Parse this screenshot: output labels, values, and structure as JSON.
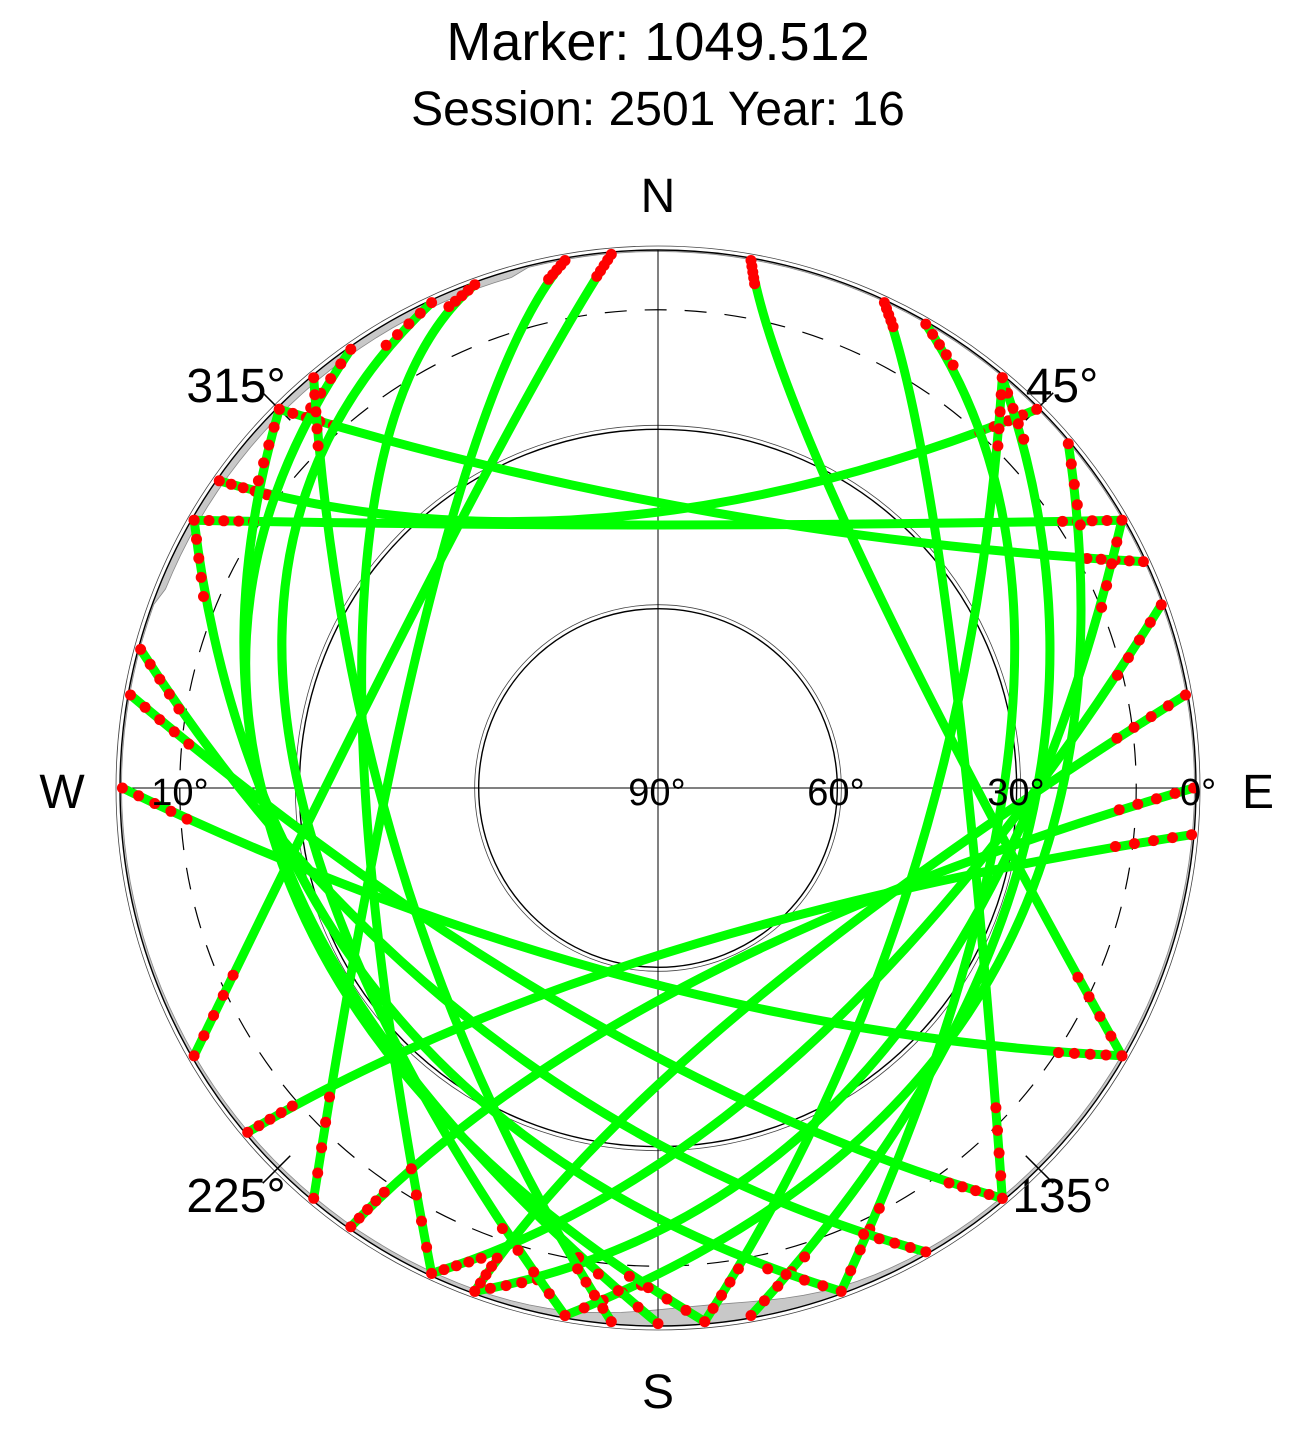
{
  "chart_data": {
    "type": "scatter",
    "projection": "polar-skyplot",
    "title": "Marker: 1049.512",
    "subtitle": "Session: 2501 Year: 16",
    "compass": {
      "north": "N",
      "south": "S",
      "east": "E",
      "west": "W"
    },
    "azimuth_labels": [
      {
        "azimuth": 45,
        "text": "45°"
      },
      {
        "azimuth": 135,
        "text": "135°"
      },
      {
        "azimuth": 225,
        "text": "225°"
      },
      {
        "azimuth": 315,
        "text": "315°"
      }
    ],
    "elevation_labels": [
      {
        "elevation": 0,
        "text": "0°"
      },
      {
        "elevation": 30,
        "text": "30°"
      },
      {
        "elevation": 60,
        "text": "60°"
      },
      {
        "elevation": 90,
        "text": "90°"
      },
      {
        "elevation": 10,
        "text": "10°",
        "side": "west"
      }
    ],
    "elevation_range": [
      0,
      90
    ],
    "elevation_rings": [
      0,
      30,
      60
    ],
    "mask_elevation": 10,
    "visible_no_data_elevation_below": 50,
    "grid": true,
    "colors": {
      "tracked": "#00ff00",
      "low_elevation": "#ff0000",
      "horizon_fill": "#c8c8c8",
      "axis": "#000000"
    },
    "series": [
      {
        "name": "",
        "color": "#00ff00"
      },
      {
        "name": "",
        "color": "#ff0000"
      }
    ],
    "tracks": [
      {
        "peak_azimuth": 0,
        "peak_elevation": 46,
        "rise": 300,
        "set": 60
      },
      {
        "peak_azimuth": 350,
        "peak_elevation": 44,
        "rise": 305,
        "set": 45
      },
      {
        "peak_azimuth": 10,
        "peak_elevation": 43,
        "rise": 315,
        "set": 65
      },
      {
        "peak_azimuth": 60,
        "peak_elevation": 34,
        "rise": 25,
        "set": 140
      },
      {
        "peak_azimuth": 80,
        "peak_elevation": 30,
        "rise": 30,
        "set": 160
      },
      {
        "peak_azimuth": 100,
        "peak_elevation": 28,
        "rise": 40,
        "set": 170
      },
      {
        "peak_azimuth": 120,
        "peak_elevation": 26,
        "rise": 50,
        "set": 190
      },
      {
        "peak_azimuth": 140,
        "peak_elevation": 32,
        "rise": 60,
        "set": 200
      },
      {
        "peak_azimuth": 150,
        "peak_elevation": 40,
        "rise": 70,
        "set": 205
      },
      {
        "peak_azimuth": 160,
        "peak_elevation": 50,
        "rise": 80,
        "set": 200
      },
      {
        "peak_azimuth": 170,
        "peak_elevation": 57,
        "rise": 90,
        "set": 215
      },
      {
        "peak_azimuth": 180,
        "peak_elevation": 62,
        "rise": 95,
        "set": 230
      },
      {
        "peak_azimuth": 190,
        "peak_elevation": 58,
        "rise": 120,
        "set": 270
      },
      {
        "peak_azimuth": 200,
        "peak_elevation": 50,
        "rise": 140,
        "set": 280
      },
      {
        "peak_azimuth": 215,
        "peak_elevation": 40,
        "rise": 150,
        "set": 285
      },
      {
        "peak_azimuth": 230,
        "peak_elevation": 32,
        "rise": 160,
        "set": 300
      },
      {
        "peak_azimuth": 250,
        "peak_elevation": 27,
        "rise": 175,
        "set": 315
      },
      {
        "peak_azimuth": 265,
        "peak_elevation": 25,
        "rise": 180,
        "set": 325
      },
      {
        "peak_azimuth": 280,
        "peak_elevation": 27,
        "rise": 190,
        "set": 335
      },
      {
        "peak_azimuth": 300,
        "peak_elevation": 33,
        "rise": 205,
        "set": 340
      },
      {
        "peak_azimuth": 315,
        "peak_elevation": 38,
        "rise": 220,
        "set": 350
      },
      {
        "peak_azimuth": 40,
        "peak_elevation": 38,
        "rise": 10,
        "set": 120
      },
      {
        "peak_azimuth": 320,
        "peak_elevation": 36,
        "rise": 240,
        "set": 355
      },
      {
        "peak_azimuth": 110,
        "peak_elevation": 45,
        "rise": 40,
        "set": 175
      },
      {
        "peak_azimuth": 250,
        "peak_elevation": 45,
        "rise": 185,
        "set": 320
      }
    ]
  }
}
